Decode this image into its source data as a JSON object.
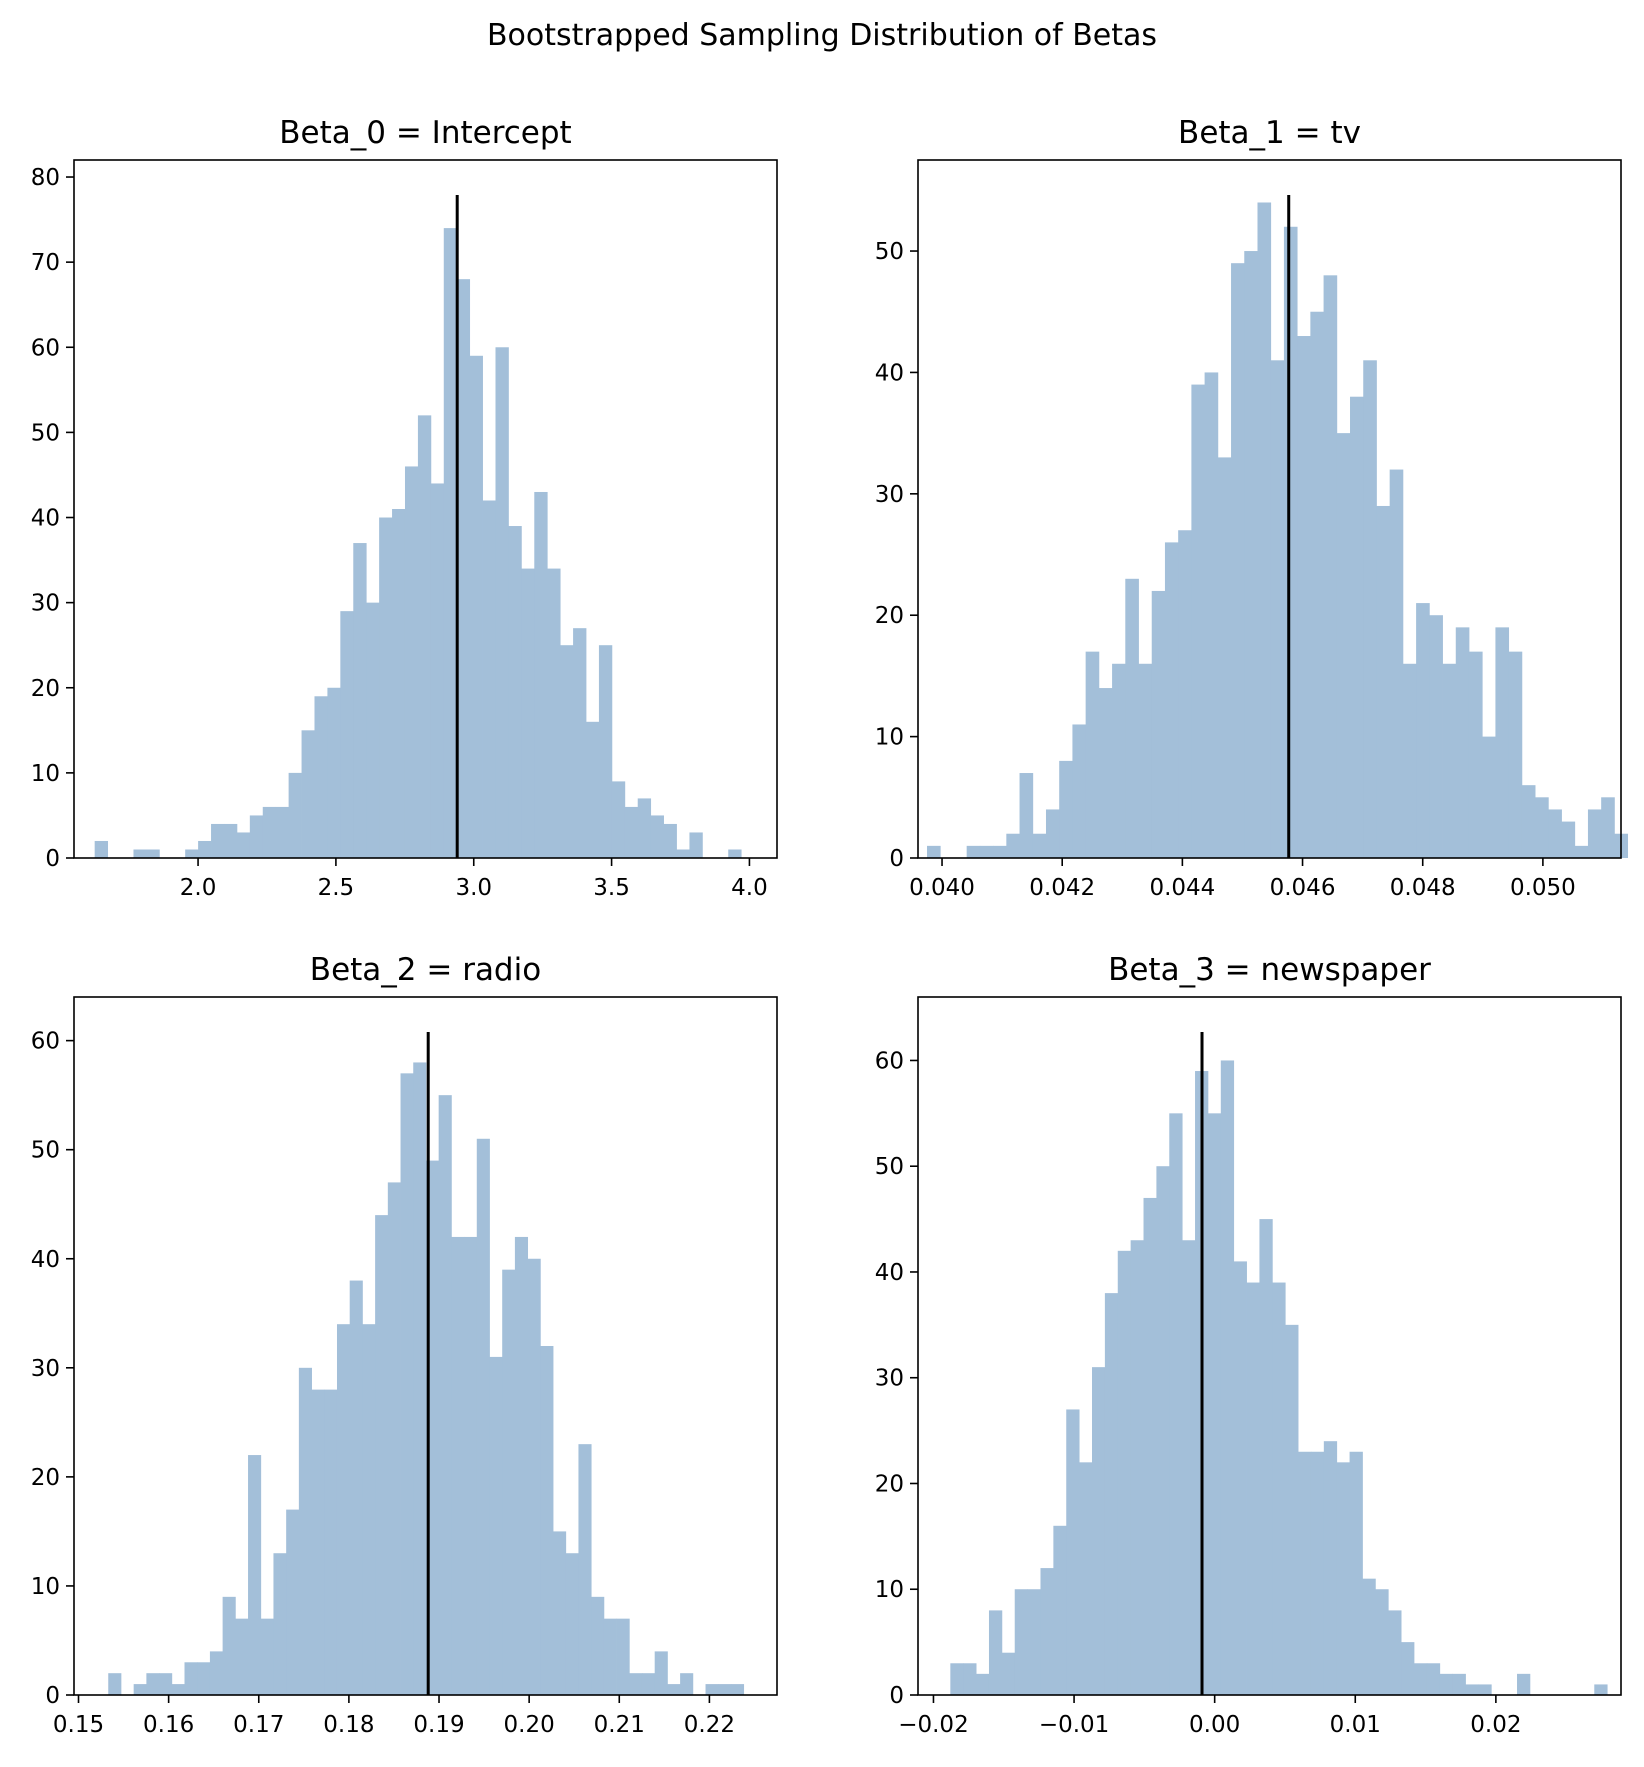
{
  "figure": {
    "title": "Bootstrapped Sampling Distribution of Betas"
  },
  "colors": {
    "bar": "#a3bfd9",
    "vline": "#000000",
    "axes": "#000000"
  },
  "chart_data": [
    {
      "type": "bar",
      "title": "Beta_0 = Intercept",
      "xlabel": "",
      "ylabel": "",
      "xlim": [
        1.55,
        4.1
      ],
      "ylim": [
        0,
        82
      ],
      "xticks": [
        2.0,
        2.5,
        3.0,
        3.5,
        4.0
      ],
      "xtick_labels": [
        "2.0",
        "2.5",
        "3.0",
        "3.5",
        "4.0"
      ],
      "yticks": [
        0,
        10,
        20,
        30,
        40,
        50,
        60,
        70,
        80
      ],
      "ytick_labels": [
        "0",
        "10",
        "20",
        "30",
        "40",
        "50",
        "60",
        "70",
        "80"
      ],
      "bin_start": 1.625,
      "bin_width": 0.0469,
      "counts": [
        2,
        0,
        0,
        1,
        1,
        0,
        0,
        1,
        2,
        4,
        4,
        3,
        5,
        6,
        6,
        10,
        15,
        19,
        20,
        29,
        37,
        30,
        40,
        41,
        46,
        52,
        44,
        74,
        68,
        59,
        42,
        60,
        39,
        34,
        43,
        34,
        25,
        27,
        16,
        25,
        9,
        6,
        7,
        5,
        4,
        1,
        3,
        0,
        0,
        1
      ],
      "vline": 2.94,
      "grid": false
    },
    {
      "type": "bar",
      "title": "Beta_1 = tv",
      "xlabel": "",
      "ylabel": "",
      "xlim": [
        0.0396,
        0.0513
      ],
      "ylim": [
        0,
        57.5
      ],
      "xticks": [
        0.04,
        0.042,
        0.044,
        0.046,
        0.048,
        0.05
      ],
      "xtick_labels": [
        "0.040",
        "0.042",
        "0.044",
        "0.046",
        "0.048",
        "0.050"
      ],
      "yticks": [
        0,
        10,
        20,
        30,
        40,
        50
      ],
      "ytick_labels": [
        "0",
        "10",
        "20",
        "30",
        "40",
        "50"
      ],
      "bin_start": 0.03975,
      "bin_width": 0.00022,
      "counts": [
        1,
        0,
        0,
        1,
        1,
        1,
        2,
        7,
        2,
        4,
        8,
        11,
        17,
        14,
        16,
        23,
        16,
        22,
        26,
        27,
        39,
        40,
        33,
        49,
        50,
        54,
        41,
        52,
        43,
        45,
        48,
        35,
        38,
        41,
        29,
        32,
        16,
        21,
        20,
        16,
        19,
        17,
        10,
        19,
        17,
        6,
        5,
        4,
        3,
        1,
        4,
        5,
        2
      ],
      "vline": 0.04577,
      "grid": false
    },
    {
      "type": "bar",
      "title": "Beta_2 = radio",
      "xlabel": "",
      "ylabel": "",
      "xlim": [
        0.1495,
        0.2275
      ],
      "ylim": [
        0,
        64
      ],
      "xticks": [
        0.15,
        0.16,
        0.17,
        0.18,
        0.19,
        0.2,
        0.21,
        0.22
      ],
      "xtick_labels": [
        "0.15",
        "0.16",
        "0.17",
        "0.18",
        "0.19",
        "0.20",
        "0.21",
        "0.22"
      ],
      "yticks": [
        0,
        10,
        20,
        30,
        40,
        50,
        60
      ],
      "ytick_labels": [
        "0",
        "10",
        "20",
        "30",
        "40",
        "50",
        "60"
      ],
      "bin_start": 0.1533,
      "bin_width": 0.00141,
      "counts": [
        2,
        0,
        1,
        2,
        2,
        1,
        3,
        3,
        4,
        9,
        7,
        22,
        7,
        13,
        17,
        30,
        28,
        28,
        34,
        38,
        34,
        44,
        47,
        57,
        58,
        49,
        55,
        42,
        42,
        51,
        31,
        39,
        42,
        40,
        32,
        15,
        13,
        23,
        9,
        7,
        7,
        2,
        2,
        4,
        1,
        2,
        0,
        1,
        1,
        1
      ],
      "vline": 0.1888,
      "grid": false
    },
    {
      "type": "bar",
      "title": "Beta_3 = newspaper",
      "xlabel": "",
      "ylabel": "",
      "xlim": [
        -0.0211,
        0.0289
      ],
      "ylim": [
        0,
        66
      ],
      "xticks": [
        -0.02,
        -0.01,
        0.0,
        0.01,
        0.02
      ],
      "xtick_labels": [
        "−0.02",
        "−0.01",
        "0.00",
        "0.01",
        "0.02"
      ],
      "yticks": [
        0,
        10,
        20,
        30,
        40,
        50,
        60
      ],
      "ytick_labels": [
        "0",
        "10",
        "20",
        "30",
        "40",
        "50",
        "60"
      ],
      "bin_start": -0.0188,
      "bin_width": 0.000916,
      "counts": [
        3,
        3,
        2,
        8,
        4,
        10,
        10,
        12,
        16,
        27,
        22,
        31,
        38,
        42,
        43,
        47,
        50,
        55,
        43,
        59,
        55,
        60,
        41,
        39,
        45,
        39,
        35,
        23,
        23,
        24,
        22,
        23,
        11,
        10,
        8,
        5,
        3,
        3,
        2,
        2,
        1,
        1,
        0,
        0,
        2,
        0,
        0,
        0,
        0,
        0,
        1
      ],
      "vline": -0.0009,
      "grid": false
    }
  ]
}
